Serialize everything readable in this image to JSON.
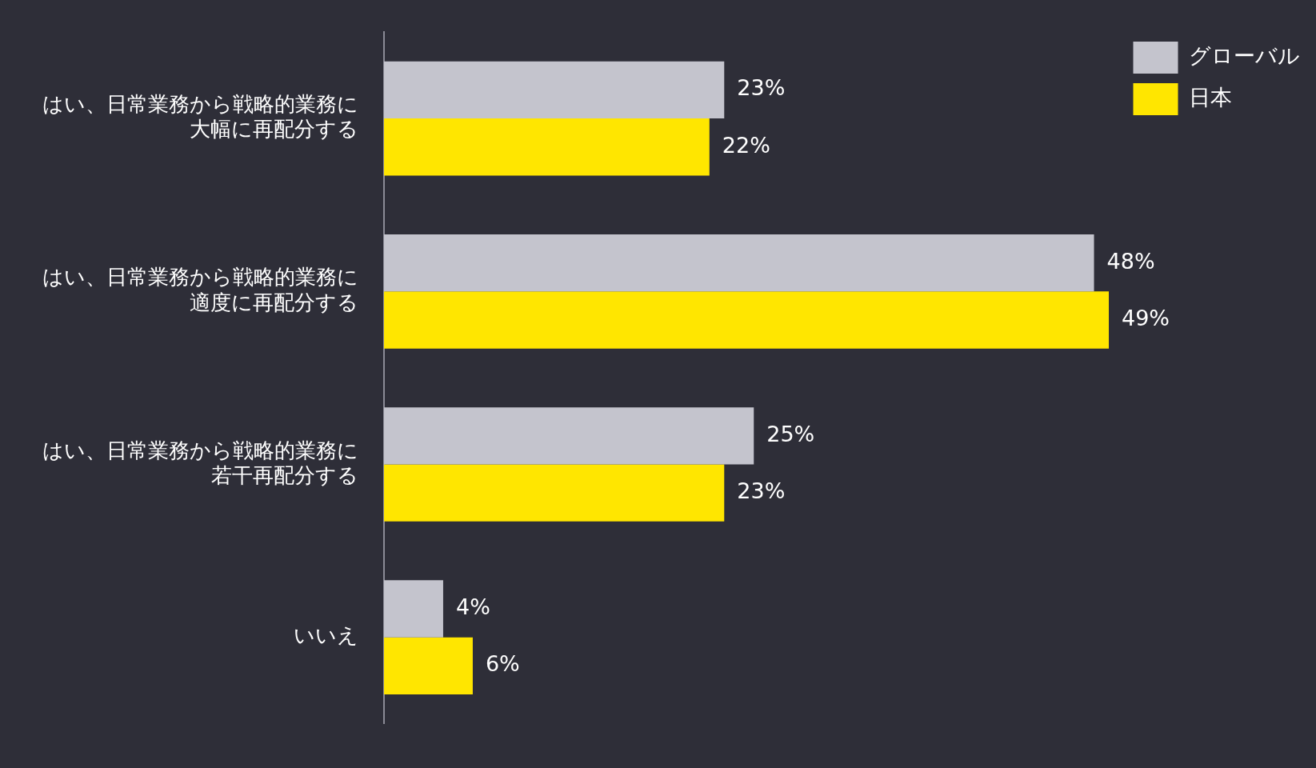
{
  "chart_data": {
    "type": "bar",
    "orientation": "horizontal",
    "legend": "top right",
    "categories": [
      "はい、日常業務から戦略的業務に大幅に再配分する",
      "はい、日常業務から戦略的業務に適度に再配分する",
      "はい、日常業務から戦略的業務に若干再配分する",
      "いいえ"
    ],
    "series": [
      {
        "name": "グローバル",
        "color": "#c4c4cd",
        "values": [
          23,
          48,
          25,
          4
        ],
        "value_labels": [
          "23%",
          "48%",
          "25%",
          "4%"
        ]
      },
      {
        "name": "日本",
        "color": "#ffe600",
        "values": [
          22,
          49,
          23,
          6
        ],
        "value_labels": [
          "22%",
          "49%",
          "23%",
          "6%"
        ]
      }
    ]
  }
}
